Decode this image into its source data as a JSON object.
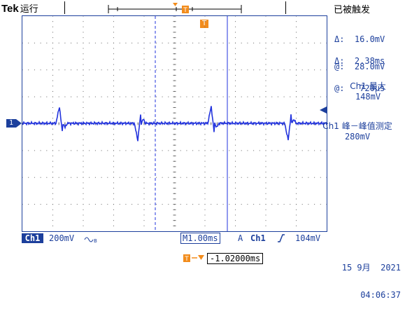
{
  "header": {
    "brand": "Tek",
    "run_state": "运行",
    "status": "已被触发"
  },
  "cursors": {
    "amp_delta": "Δ:  16.0mV",
    "amp_at": "@:  28.0mV",
    "time_delta": "Δ:  2.38ms",
    "time_at": "@:   720μs"
  },
  "measurements": [
    {
      "label": "Ch1 最大",
      "value": "148mV"
    },
    {
      "label": "Ch1 峰－峰值测定",
      "value": "280mV"
    }
  ],
  "channel_marker": "1",
  "trigger_marker": "T",
  "bottom_bar": {
    "ch_badge": "Ch1",
    "volts_div": "200mV",
    "bw_icon": "bandwidth-limit-icon",
    "timebase": "M1.00ms",
    "acq_mode": "A",
    "trig_source": "Ch1",
    "trig_slope_icon": "rising-edge-icon",
    "trig_level": "104mV"
  },
  "datetime": {
    "date": "15 9月  2021",
    "time": "04:06:37"
  },
  "trigger_position": "-1.02000ms",
  "colors": {
    "trace": "#2233dd",
    "accent": "#1c3f9c",
    "trigger": "#f28c1c"
  }
}
